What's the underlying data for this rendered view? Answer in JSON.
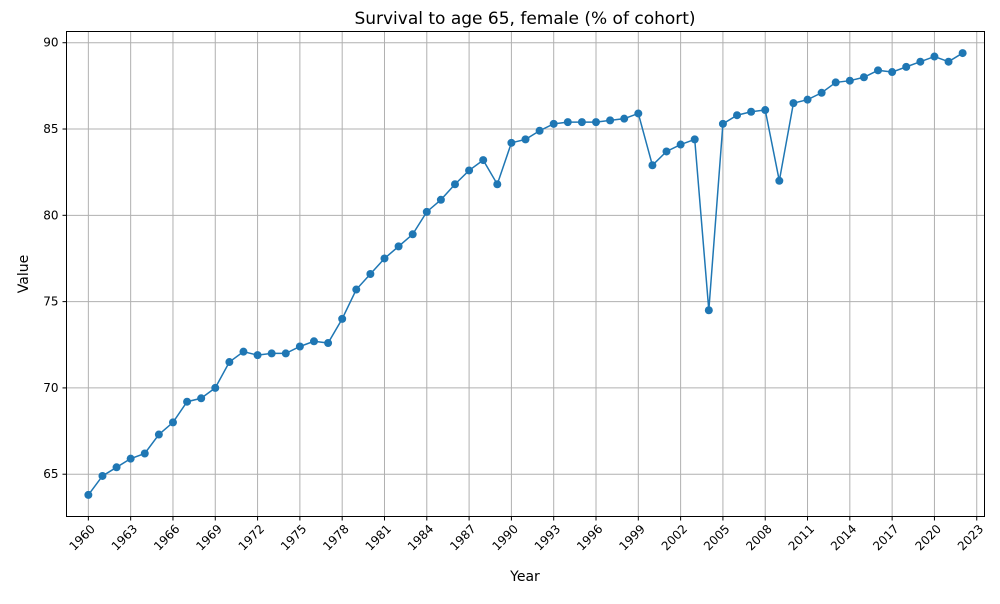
{
  "chart_data": {
    "type": "line",
    "title": "Survival to age 65, female (% of cohort)",
    "xlabel": "Year",
    "ylabel": "Value",
    "xlim": [
      1958.45,
      2023.55
    ],
    "ylim": [
      62.55,
      90.65
    ],
    "grid": true,
    "legend": "none",
    "line_color": "#1f77b4",
    "x_ticks": [
      "1960",
      "1963",
      "1966",
      "1969",
      "1972",
      "1975",
      "1978",
      "1981",
      "1984",
      "1987",
      "1990",
      "1993",
      "1996",
      "1999",
      "2002",
      "2005",
      "2008",
      "2011",
      "2014",
      "2017",
      "2020",
      "2023"
    ],
    "y_ticks": [
      "65",
      "70",
      "75",
      "80",
      "85",
      "90"
    ],
    "series": [
      {
        "x": [
          1960,
          1961,
          1962,
          1963,
          1964,
          1965,
          1966,
          1967,
          1968,
          1969,
          1970,
          1971,
          1972,
          1973,
          1974,
          1975,
          1976,
          1977,
          1978,
          1979,
          1980,
          1981,
          1982,
          1983,
          1984,
          1985,
          1986,
          1987,
          1988,
          1989,
          1990,
          1991,
          1992,
          1993,
          1994,
          1995,
          1996,
          1997,
          1998,
          1999,
          2000,
          2001,
          2002,
          2003,
          2004,
          2005,
          2006,
          2007,
          2008,
          2009,
          2010,
          2011,
          2012,
          2013,
          2014,
          2015,
          2016,
          2017,
          2018,
          2019,
          2020,
          2021,
          2022
        ],
        "values": [
          63.8,
          64.9,
          65.4,
          65.9,
          66.2,
          67.3,
          68.0,
          69.2,
          69.4,
          70.0,
          71.5,
          72.1,
          71.9,
          72.0,
          72.0,
          72.4,
          72.7,
          72.6,
          74.0,
          75.7,
          76.6,
          77.5,
          78.2,
          78.9,
          80.2,
          80.9,
          81.8,
          82.6,
          83.2,
          81.8,
          84.2,
          84.4,
          84.9,
          85.3,
          85.4,
          85.4,
          85.4,
          85.5,
          85.6,
          85.9,
          82.9,
          83.7,
          84.1,
          84.4,
          74.5,
          85.3,
          85.8,
          86.0,
          86.1,
          82.0,
          86.5,
          86.7,
          87.1,
          87.7,
          87.8,
          88.0,
          88.4,
          88.3,
          88.6,
          88.9,
          89.2,
          88.9,
          89.4
        ]
      }
    ]
  }
}
